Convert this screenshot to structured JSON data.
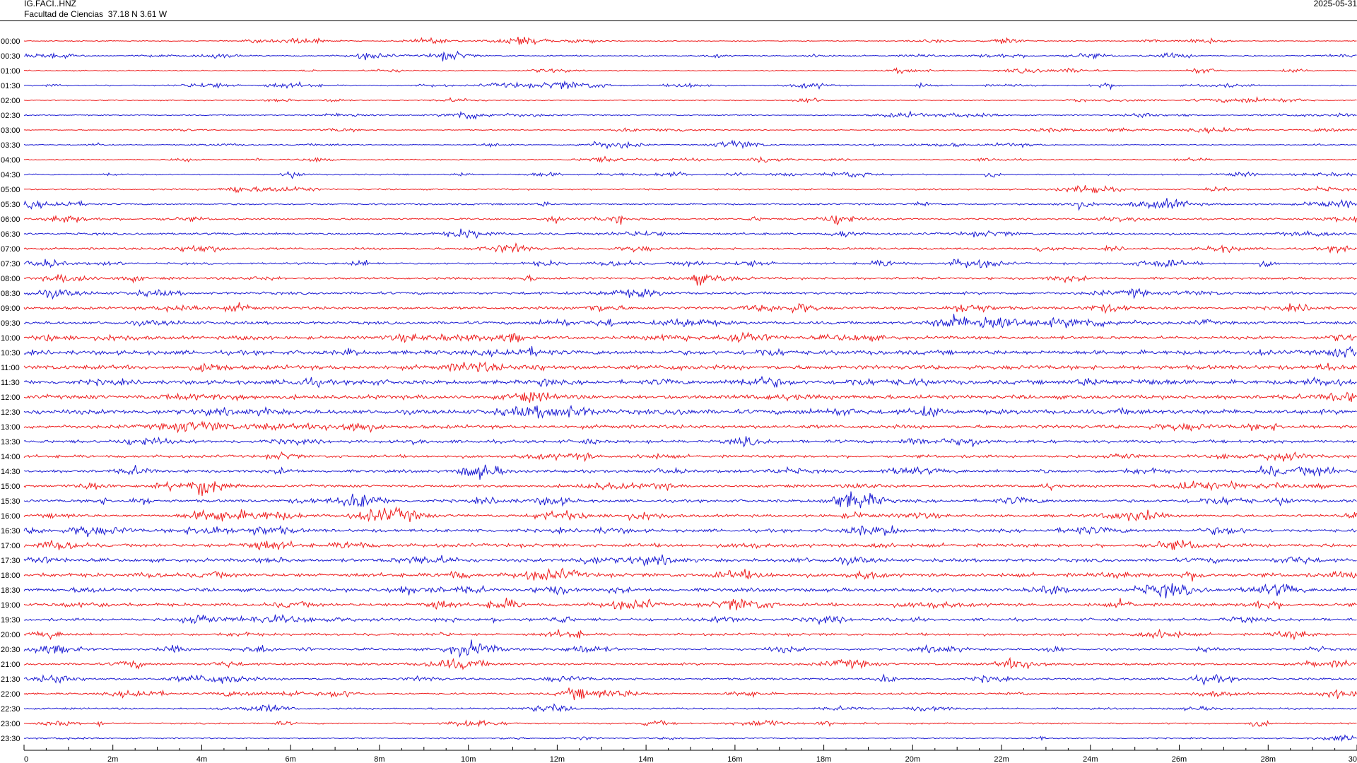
{
  "header": {
    "station": "IG.FACI..HNZ",
    "location": "Facultad de Ciencias  37.18 N 3.61 W",
    "date": "2025-05-31"
  },
  "colors": {
    "even_trace": "#ee1c1c",
    "odd_trace": "#1a1ad2",
    "axis": "#000000"
  },
  "chart_data": {
    "type": "line",
    "description_of_mark": "helicorder",
    "row_labels": [
      "00:00",
      "00:30",
      "01:00",
      "01:30",
      "02:00",
      "02:30",
      "03:00",
      "03:30",
      "04:00",
      "04:30",
      "05:00",
      "05:30",
      "06:00",
      "06:30",
      "07:00",
      "07:30",
      "08:00",
      "08:30",
      "09:00",
      "09:30",
      "10:00",
      "10:30",
      "11:00",
      "11:30",
      "12:00",
      "12:30",
      "13:00",
      "13:30",
      "14:00",
      "14:30",
      "15:00",
      "15:30",
      "16:00",
      "16:30",
      "17:00",
      "17:30",
      "18:00",
      "18:30",
      "19:00",
      "19:30",
      "20:00",
      "20:30",
      "21:00",
      "21:30",
      "22:00",
      "22:30",
      "23:00",
      "23:30"
    ],
    "row_amplitude": [
      0.6,
      0.7,
      0.6,
      0.7,
      0.6,
      0.7,
      0.6,
      0.6,
      0.6,
      0.8,
      0.9,
      1.0,
      1.1,
      1.3,
      1.3,
      1.2,
      1.4,
      1.6,
      1.7,
      1.8,
      1.9,
      2.6,
      2.6,
      2.5,
      2.4,
      2.8,
      2.2,
      1.9,
      1.7,
      1.7,
      1.6,
      1.7,
      1.6,
      1.9,
      2.1,
      2.0,
      2.2,
      2.1,
      1.9,
      1.7,
      1.5,
      1.4,
      1.4,
      1.3,
      1.1,
      1.0,
      0.9,
      0.8
    ],
    "x_ticks": [
      "0",
      "2m",
      "4m",
      "6m",
      "8m",
      "10m",
      "12m",
      "14m",
      "16m",
      "18m",
      "20m",
      "22m",
      "24m",
      "26m",
      "28m",
      "30"
    ],
    "xlim": [
      0,
      30
    ],
    "x_unit": "minutes",
    "grid": false
  }
}
